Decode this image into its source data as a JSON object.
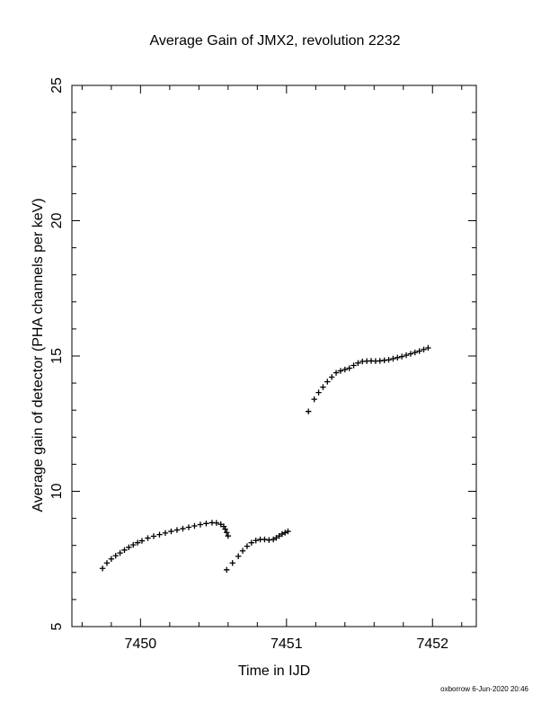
{
  "chart_data": {
    "type": "scatter",
    "title": "Average Gain of JMX2, revolution 2232",
    "xlabel": "Time in IJD",
    "ylabel": "Average gain of detector (PHA channels per keV)",
    "xlim": [
      7449.53,
      7452.3
    ],
    "ylim": [
      5,
      25
    ],
    "xticks": [
      7450,
      7451,
      7452
    ],
    "yticks": [
      5,
      10,
      15,
      20,
      25
    ],
    "grid": false,
    "marker": "+",
    "segments": [
      {
        "x": [
          7449.74,
          7449.77,
          7449.8,
          7449.83,
          7449.86,
          7449.89,
          7449.92,
          7449.95,
          7449.98,
          7450.01,
          7450.05,
          7450.09,
          7450.13,
          7450.17,
          7450.21,
          7450.25,
          7450.29,
          7450.33,
          7450.37,
          7450.41,
          7450.45,
          7450.49,
          7450.52,
          7450.55,
          7450.57,
          7450.58,
          7450.59,
          7450.6
        ],
        "y": [
          7.15,
          7.35,
          7.5,
          7.62,
          7.72,
          7.83,
          7.93,
          8.02,
          8.1,
          8.17,
          8.27,
          8.34,
          8.4,
          8.46,
          8.52,
          8.57,
          8.62,
          8.67,
          8.72,
          8.77,
          8.81,
          8.84,
          8.83,
          8.78,
          8.7,
          8.6,
          8.48,
          8.35
        ]
      },
      {
        "x": [
          7450.59,
          7450.63,
          7450.67,
          7450.7,
          7450.73,
          7450.76,
          7450.79,
          7450.82,
          7450.85,
          7450.88,
          7450.91,
          7450.93,
          7450.95,
          7450.97,
          7450.99,
          7451.01
        ],
        "y": [
          7.1,
          7.35,
          7.6,
          7.8,
          7.97,
          8.1,
          8.18,
          8.22,
          8.22,
          8.2,
          8.22,
          8.28,
          8.35,
          8.42,
          8.47,
          8.52
        ]
      },
      {
        "x": [
          7451.15,
          7451.19,
          7451.22,
          7451.25,
          7451.28,
          7451.31,
          7451.34,
          7451.37,
          7451.4,
          7451.43,
          7451.46,
          7451.49,
          7451.52,
          7451.55,
          7451.58,
          7451.61,
          7451.64,
          7451.67,
          7451.7,
          7451.73,
          7451.76,
          7451.79,
          7451.82,
          7451.85,
          7451.88,
          7451.91,
          7451.94,
          7451.97
        ],
        "y": [
          12.95,
          13.4,
          13.65,
          13.85,
          14.05,
          14.22,
          14.38,
          14.45,
          14.5,
          14.55,
          14.65,
          14.74,
          14.8,
          14.81,
          14.82,
          14.81,
          14.82,
          14.84,
          14.86,
          14.9,
          14.94,
          14.98,
          15.03,
          15.08,
          15.13,
          15.18,
          15.24,
          15.3
        ]
      }
    ]
  },
  "footer": {
    "credit": "oxborrow 6-Jun-2020 20:46"
  }
}
